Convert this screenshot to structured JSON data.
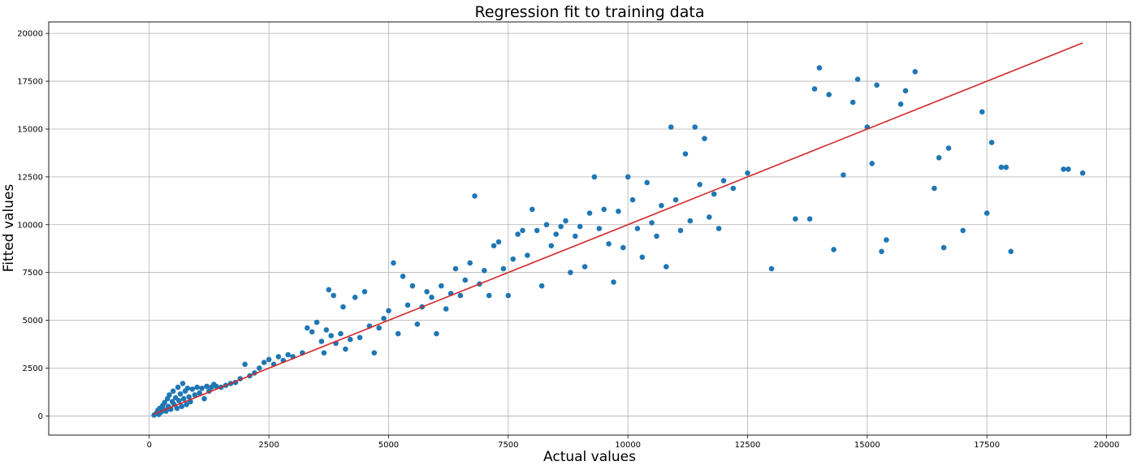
{
  "chart_data": {
    "type": "scatter",
    "title": "Regression fit to training data",
    "xlabel": "Actual values",
    "ylabel": "Fitted values",
    "xlim": [
      -2100,
      20500
    ],
    "ylim": [
      -1000,
      20600
    ],
    "xticks": [
      0,
      2500,
      5000,
      7500,
      10000,
      12500,
      15000,
      17500,
      20000
    ],
    "yticks": [
      0,
      2500,
      5000,
      7500,
      10000,
      12500,
      15000,
      17500,
      20000
    ],
    "grid": true,
    "colors": {
      "points": "#1f77b4",
      "fit_line": "#d62728"
    },
    "fit_line": {
      "x": [
        100,
        19500
      ],
      "y": [
        100,
        19500
      ]
    },
    "series": [
      {
        "values": [
          [
            100,
            50
          ],
          [
            150,
            150
          ],
          [
            180,
            300
          ],
          [
            200,
            80
          ],
          [
            220,
            400
          ],
          [
            250,
            200
          ],
          [
            280,
            550
          ],
          [
            300,
            350
          ],
          [
            320,
            700
          ],
          [
            350,
            250
          ],
          [
            380,
            900
          ],
          [
            400,
            500
          ],
          [
            420,
            1100
          ],
          [
            450,
            350
          ],
          [
            480,
            750
          ],
          [
            500,
            1300
          ],
          [
            520,
            600
          ],
          [
            550,
            950
          ],
          [
            580,
            400
          ],
          [
            600,
            1500
          ],
          [
            620,
            800
          ],
          [
            650,
            1150
          ],
          [
            680,
            500
          ],
          [
            700,
            1700
          ],
          [
            720,
            900
          ],
          [
            750,
            1300
          ],
          [
            780,
            600
          ],
          [
            800,
            1450
          ],
          [
            830,
            1000
          ],
          [
            860,
            750
          ],
          [
            900,
            1400
          ],
          [
            950,
            1100
          ],
          [
            1000,
            1500
          ],
          [
            1050,
            1200
          ],
          [
            1100,
            1450
          ],
          [
            1150,
            900
          ],
          [
            1200,
            1550
          ],
          [
            1250,
            1300
          ],
          [
            1300,
            1500
          ],
          [
            1350,
            1650
          ],
          [
            1400,
            1550
          ],
          [
            1500,
            1500
          ],
          [
            1600,
            1600
          ],
          [
            1700,
            1700
          ],
          [
            1800,
            1750
          ],
          [
            1900,
            1950
          ],
          [
            2000,
            2700
          ],
          [
            2100,
            2100
          ],
          [
            2200,
            2250
          ],
          [
            2300,
            2500
          ],
          [
            2400,
            2800
          ],
          [
            2500,
            2950
          ],
          [
            2600,
            2700
          ],
          [
            2700,
            3100
          ],
          [
            2800,
            2900
          ],
          [
            2900,
            3200
          ],
          [
            3000,
            3100
          ],
          [
            3200,
            3300
          ],
          [
            3300,
            4600
          ],
          [
            3400,
            4400
          ],
          [
            3500,
            4900
          ],
          [
            3600,
            3900
          ],
          [
            3650,
            3300
          ],
          [
            3700,
            4500
          ],
          [
            3750,
            6600
          ],
          [
            3800,
            4200
          ],
          [
            3850,
            6300
          ],
          [
            3900,
            3800
          ],
          [
            4000,
            4300
          ],
          [
            4050,
            5700
          ],
          [
            4100,
            3500
          ],
          [
            4200,
            4000
          ],
          [
            4300,
            6200
          ],
          [
            4400,
            4100
          ],
          [
            4500,
            6500
          ],
          [
            4600,
            4700
          ],
          [
            4700,
            3300
          ],
          [
            4800,
            4600
          ],
          [
            4900,
            5100
          ],
          [
            5000,
            5500
          ],
          [
            5100,
            8000
          ],
          [
            5200,
            4300
          ],
          [
            5300,
            7300
          ],
          [
            5400,
            5800
          ],
          [
            5500,
            6800
          ],
          [
            5600,
            4800
          ],
          [
            5700,
            5700
          ],
          [
            5800,
            6500
          ],
          [
            5900,
            6200
          ],
          [
            6000,
            4300
          ],
          [
            6100,
            6800
          ],
          [
            6200,
            5600
          ],
          [
            6300,
            6400
          ],
          [
            6400,
            7700
          ],
          [
            6500,
            6300
          ],
          [
            6600,
            7100
          ],
          [
            6700,
            8000
          ],
          [
            6800,
            11500
          ],
          [
            6900,
            6900
          ],
          [
            7000,
            7600
          ],
          [
            7100,
            6300
          ],
          [
            7200,
            8900
          ],
          [
            7300,
            9100
          ],
          [
            7400,
            7700
          ],
          [
            7500,
            6300
          ],
          [
            7600,
            8200
          ],
          [
            7700,
            9500
          ],
          [
            7800,
            9700
          ],
          [
            7900,
            8400
          ],
          [
            8000,
            10800
          ],
          [
            8100,
            9700
          ],
          [
            8200,
            6800
          ],
          [
            8300,
            10000
          ],
          [
            8400,
            8900
          ],
          [
            8500,
            9500
          ],
          [
            8600,
            9900
          ],
          [
            8700,
            10200
          ],
          [
            8800,
            7500
          ],
          [
            8900,
            9400
          ],
          [
            9000,
            9900
          ],
          [
            9100,
            7800
          ],
          [
            9200,
            10600
          ],
          [
            9300,
            12500
          ],
          [
            9400,
            9800
          ],
          [
            9500,
            10800
          ],
          [
            9600,
            9000
          ],
          [
            9700,
            7000
          ],
          [
            9800,
            10700
          ],
          [
            9900,
            8800
          ],
          [
            10000,
            12500
          ],
          [
            10100,
            11300
          ],
          [
            10200,
            9800
          ],
          [
            10300,
            8300
          ],
          [
            10400,
            12200
          ],
          [
            10500,
            10100
          ],
          [
            10600,
            9400
          ],
          [
            10700,
            11000
          ],
          [
            10800,
            7800
          ],
          [
            10900,
            15100
          ],
          [
            11000,
            11300
          ],
          [
            11100,
            9700
          ],
          [
            11200,
            13700
          ],
          [
            11300,
            10200
          ],
          [
            11400,
            15100
          ],
          [
            11500,
            12100
          ],
          [
            11600,
            14500
          ],
          [
            11700,
            10400
          ],
          [
            11800,
            11600
          ],
          [
            11900,
            9800
          ],
          [
            12000,
            12300
          ],
          [
            12200,
            11900
          ],
          [
            12500,
            12700
          ],
          [
            13000,
            7700
          ],
          [
            13500,
            10300
          ],
          [
            13800,
            10300
          ],
          [
            13900,
            17100
          ],
          [
            14000,
            18200
          ],
          [
            14200,
            16800
          ],
          [
            14300,
            8700
          ],
          [
            14500,
            12600
          ],
          [
            14700,
            16400
          ],
          [
            14800,
            17600
          ],
          [
            15000,
            15100
          ],
          [
            15100,
            13200
          ],
          [
            15200,
            17300
          ],
          [
            15300,
            8600
          ],
          [
            15400,
            9200
          ],
          [
            15700,
            16300
          ],
          [
            15800,
            17000
          ],
          [
            16000,
            18000
          ],
          [
            16400,
            11900
          ],
          [
            16500,
            13500
          ],
          [
            16600,
            8800
          ],
          [
            16700,
            14000
          ],
          [
            17000,
            9700
          ],
          [
            17400,
            15900
          ],
          [
            17500,
            10600
          ],
          [
            17600,
            14300
          ],
          [
            17800,
            13000
          ],
          [
            17900,
            13000
          ],
          [
            18000,
            8600
          ],
          [
            19100,
            12900
          ],
          [
            19200,
            12900
          ],
          [
            19500,
            12700
          ]
        ]
      }
    ]
  }
}
